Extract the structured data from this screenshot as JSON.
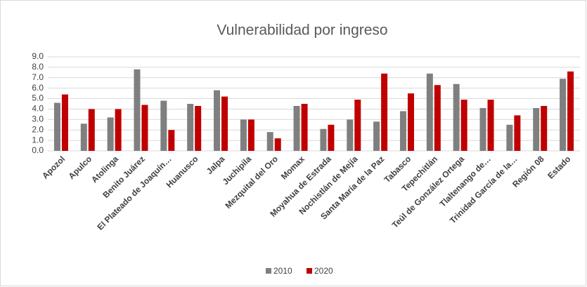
{
  "chart_data": {
    "type": "bar",
    "title": "Vulnerabilidad por ingreso",
    "categories": [
      "Apozol",
      "Apulco",
      "Atolinga",
      "Benito Juárez",
      "El Plateado de Joaquín…",
      "Huanusco",
      "Jalpa",
      "Juchipila",
      "Mezquital del Oro",
      "Momax",
      "Moyahua de Estrada",
      "Nochistlán de Mejía",
      "Santa María de la Paz",
      "Tabasco",
      "Tepechitlán",
      "Teúl de González Ortega",
      "Tlaltenango de…",
      "Trinidad García de la…",
      "Región 08",
      "Estado"
    ],
    "series": [
      {
        "name": "2010",
        "color": "#7f7f7f",
        "values": [
          4.6,
          2.6,
          3.2,
          7.8,
          4.8,
          4.5,
          5.8,
          3.0,
          1.8,
          4.3,
          2.1,
          3.0,
          2.8,
          3.8,
          7.4,
          6.4,
          4.1,
          2.5,
          4.1,
          6.9
        ]
      },
      {
        "name": "2020",
        "color": "#c00000",
        "values": [
          5.4,
          4.0,
          4.0,
          4.4,
          2.0,
          4.3,
          5.2,
          3.0,
          1.2,
          4.5,
          2.5,
          4.9,
          7.4,
          5.5,
          6.3,
          4.9,
          4.9,
          3.4,
          4.3,
          7.6
        ]
      }
    ],
    "ylim": [
      0,
      9
    ],
    "yticks": [
      {
        "value": 0,
        "label": "0.0"
      },
      {
        "value": 1,
        "label": "1.0"
      },
      {
        "value": 2,
        "label": "2.0"
      },
      {
        "value": 3,
        "label": "3.0"
      },
      {
        "value": 4,
        "label": "4.0"
      },
      {
        "value": 5,
        "label": "5.0"
      },
      {
        "value": 6,
        "label": "6.0"
      },
      {
        "value": 7,
        "label": "7.0"
      },
      {
        "value": 8,
        "label": "8.0"
      },
      {
        "value": 9,
        "label": "9.0"
      }
    ],
    "grid": true,
    "legend": "bottom"
  }
}
